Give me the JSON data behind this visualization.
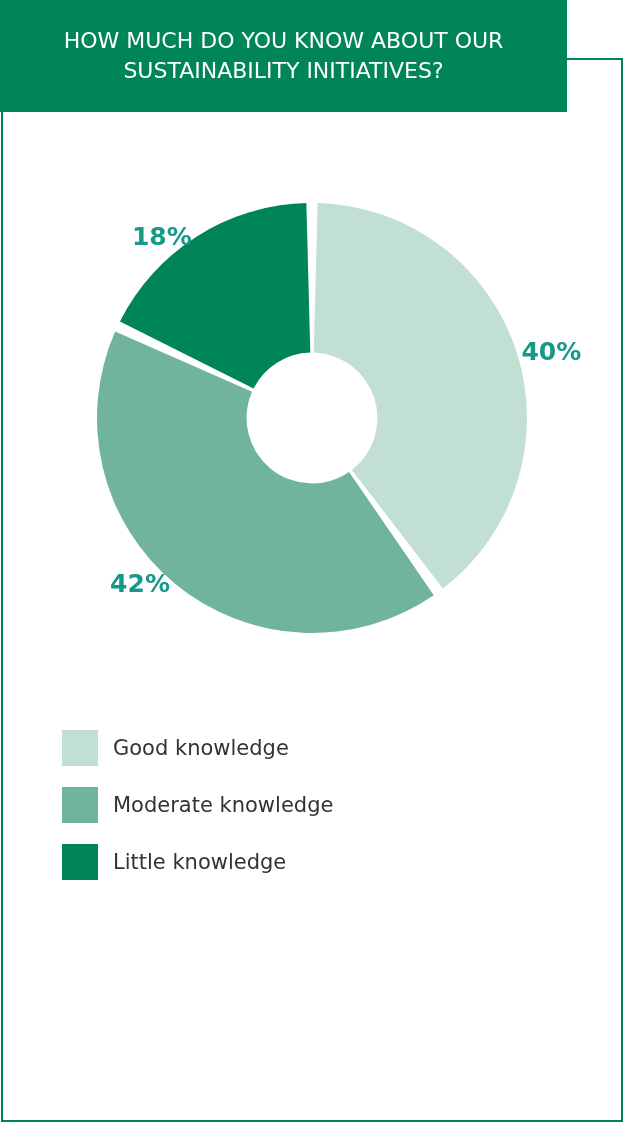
{
  "chart_data": {
    "type": "donut",
    "title": "HOW MUCH DO YOU KNOW ABOUT OUR SUSTAINABILITY INITIATIVES?",
    "categories": [
      "Good knowledge",
      "Moderate knowledge",
      "Little knowledge"
    ],
    "values": [
      40,
      42,
      18
    ],
    "colors": [
      "#c2dfd4",
      "#6fb49b",
      "#008556"
    ],
    "value_labels": [
      "40%",
      "42%",
      "18%"
    ],
    "legend": "bottom"
  }
}
